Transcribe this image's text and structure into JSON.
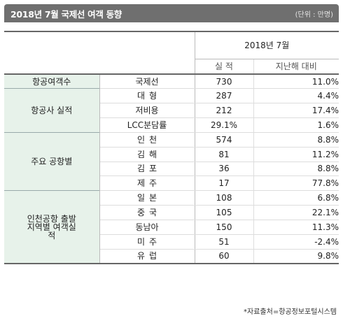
{
  "title": "2018년 7월 국제선 여객 동향",
  "unit": "(단위 : 만명)",
  "header": {
    "period": "2018년  7월",
    "col_actual": "실  적",
    "col_yoy": "지난해 대비"
  },
  "groups": [
    {
      "label": "항공여객수",
      "rows": [
        {
          "label": "국제선",
          "value": "730",
          "yoy": "11.0%"
        }
      ]
    },
    {
      "label": "항공사 실적",
      "rows": [
        {
          "label": "대형",
          "value": "287",
          "yoy": "4.4%"
        },
        {
          "label": "저비용",
          "value": "212",
          "yoy": "17.4%"
        },
        {
          "label": "LCC분담률",
          "value": "29.1%",
          "yoy": "1.6%"
        }
      ]
    },
    {
      "label": "주요 공항별",
      "rows": [
        {
          "label": "인천",
          "value": "574",
          "yoy": "8.8%"
        },
        {
          "label": "김해",
          "value": "81",
          "yoy": "11.2%"
        },
        {
          "label": "김포",
          "value": "36",
          "yoy": "8.8%"
        },
        {
          "label": "제주",
          "value": "17",
          "yoy": "77.8%"
        }
      ]
    },
    {
      "label": "인천공항 출발 지역별 여객실적",
      "rows": [
        {
          "label": "일본",
          "value": "108",
          "yoy": "6.8%"
        },
        {
          "label": "중국",
          "value": "105",
          "yoy": "22.1%"
        },
        {
          "label": "동남아",
          "value": "150",
          "yoy": "11.3%"
        },
        {
          "label": "미주",
          "value": "51",
          "yoy": "-2.4%"
        },
        {
          "label": "유럽",
          "value": "60",
          "yoy": "9.8%"
        }
      ]
    }
  ],
  "source": "*자료출처=항공정보포털시스템"
}
